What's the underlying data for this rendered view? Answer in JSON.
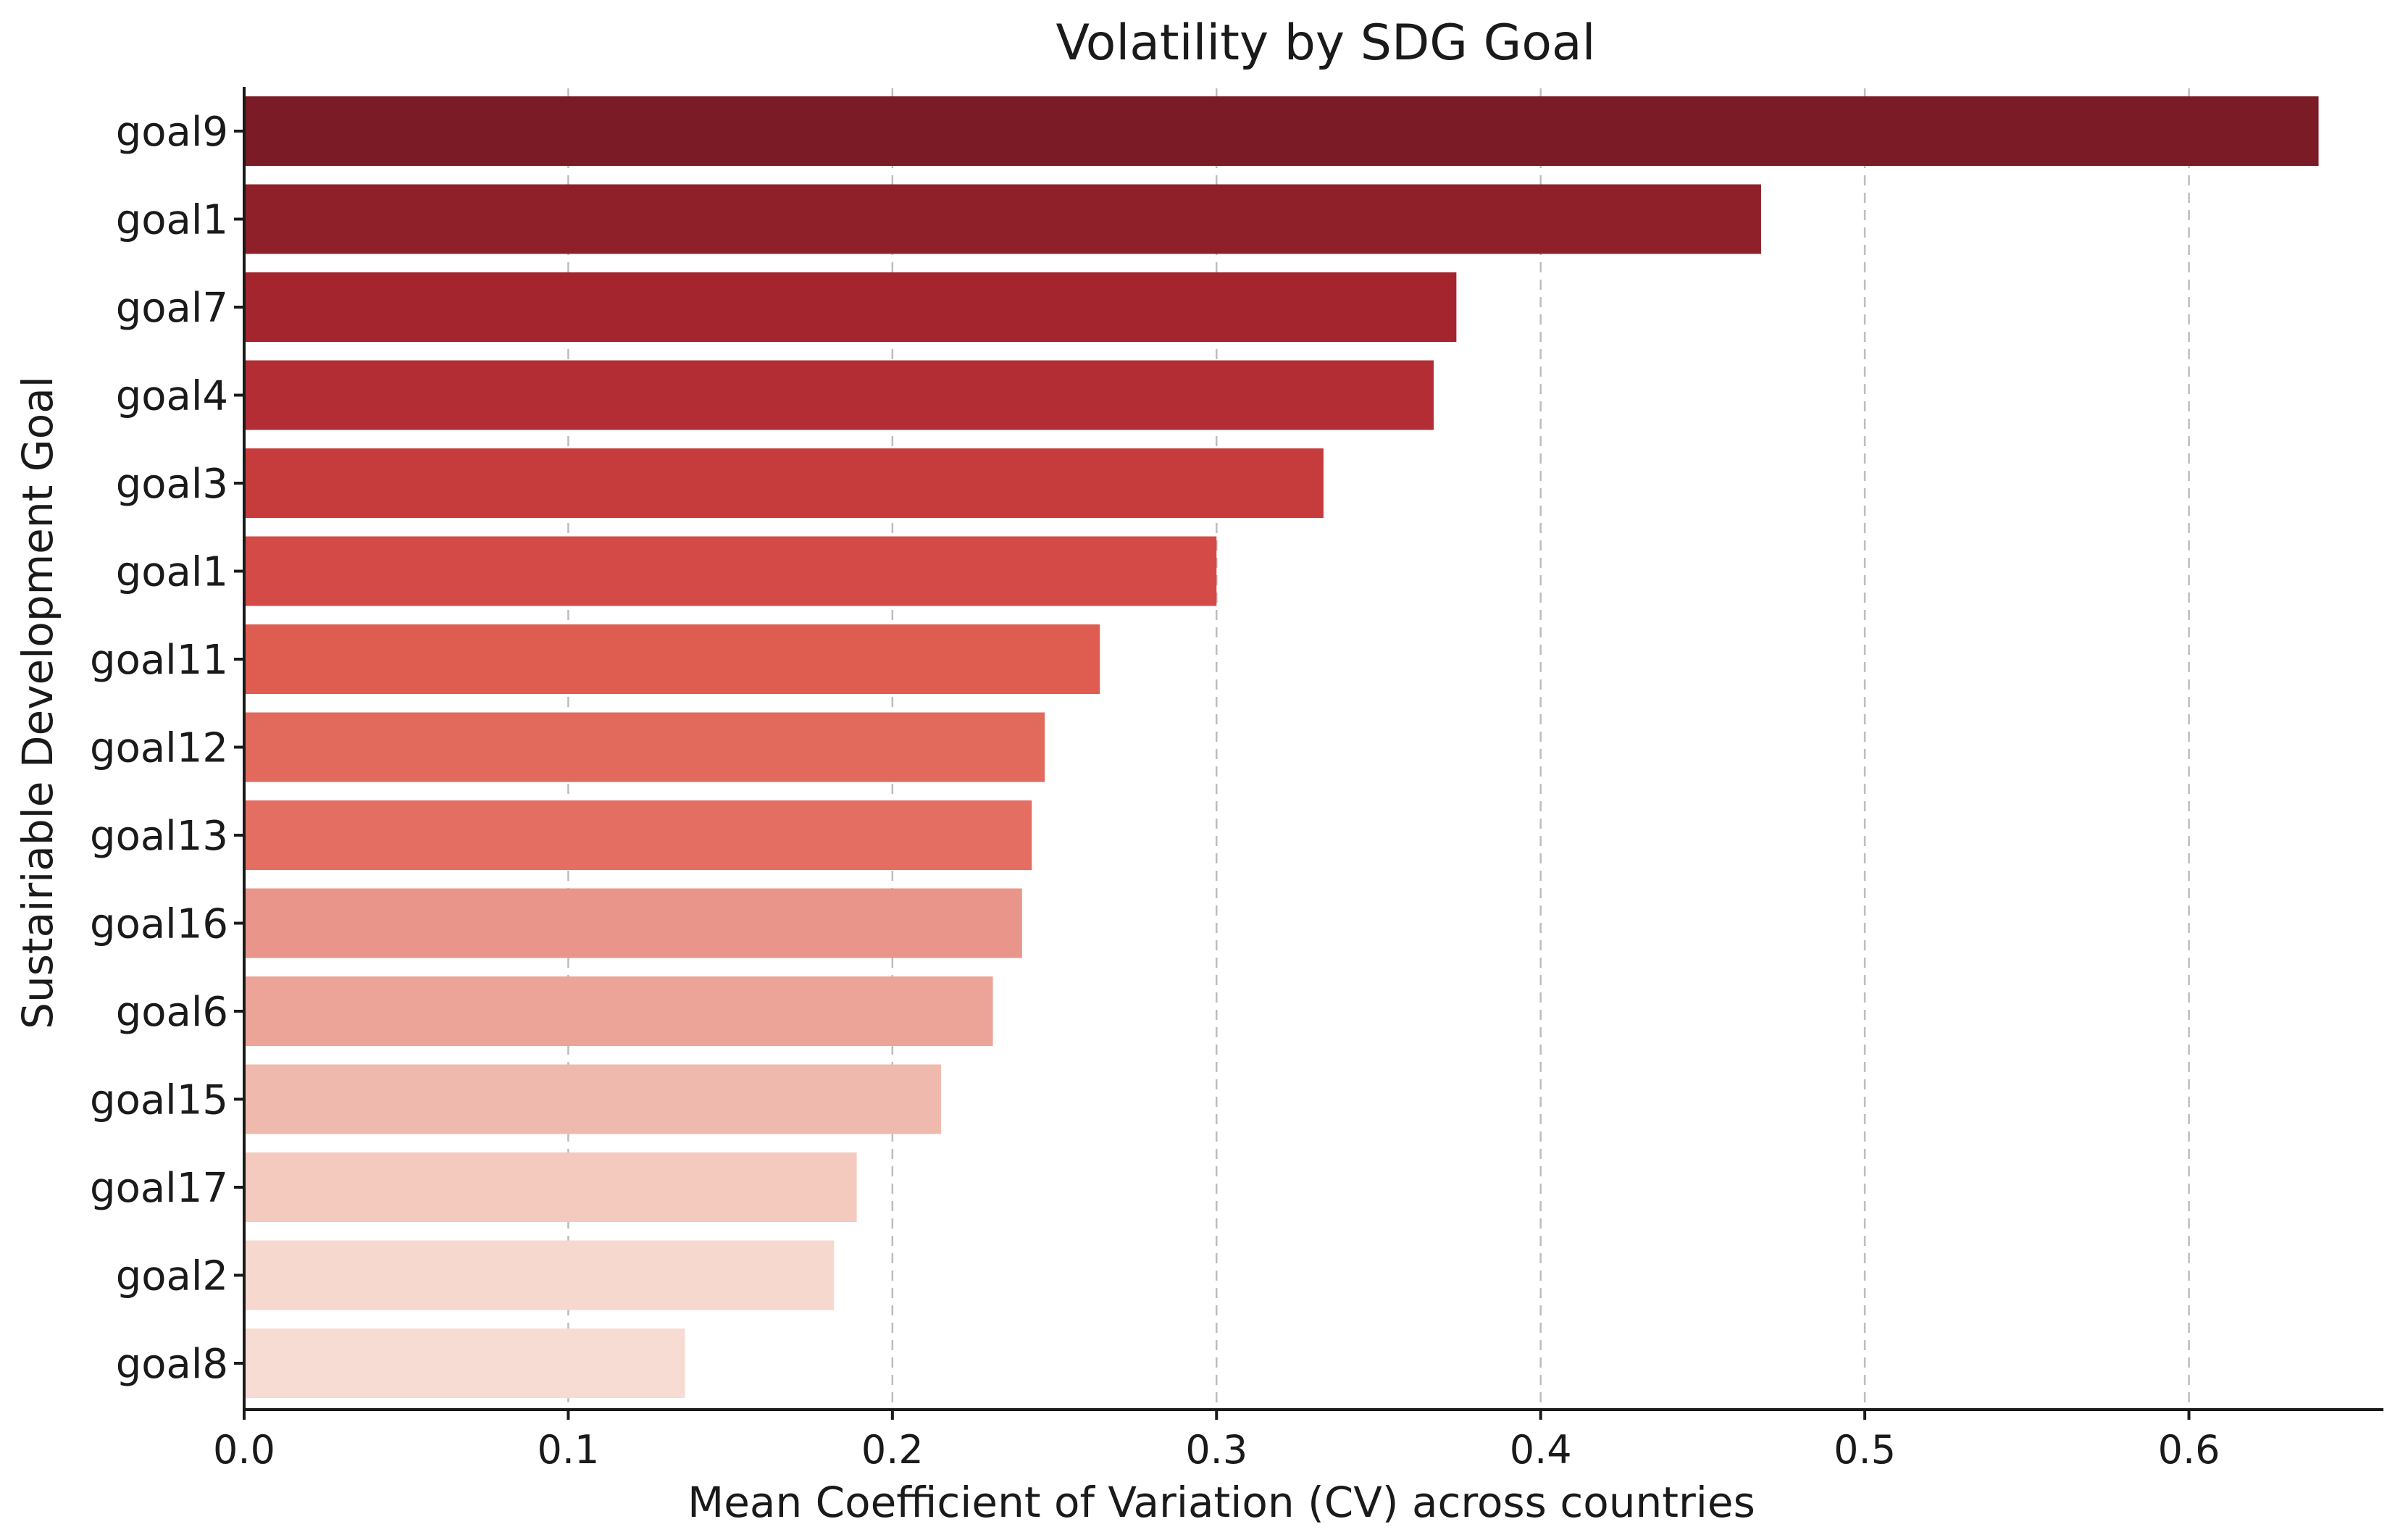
{
  "chart_data": {
    "type": "bar",
    "orientation": "horizontal",
    "title": "Volatility by SDG Goal",
    "xlabel": "Mean Coefficient of Variation (CV) across countries",
    "ylabel": "Sustairiable Development Goal",
    "categories": [
      "goal9",
      "goal1",
      "goal7",
      "goal4",
      "goal3",
      "goal1",
      "goal11",
      "goal12",
      "goal13",
      "goal16",
      "goal6",
      "goal15",
      "goal17",
      "goal2",
      "goal8"
    ],
    "values": [
      0.64,
      0.468,
      0.374,
      0.367,
      0.333,
      0.3,
      0.264,
      0.247,
      0.243,
      0.24,
      0.231,
      0.215,
      0.189,
      0.182,
      0.136
    ],
    "colors": [
      "#7b1b25",
      "#8f1f29",
      "#a4252e",
      "#b22e34",
      "#c63c3c",
      "#d34a47",
      "#df5d50",
      "#e26a5c",
      "#e36e61",
      "#e9958a",
      "#eca498",
      "#f0b9ae",
      "#f4cabf",
      "#f6d8cf",
      "#f7dcd3"
    ],
    "xlim": [
      0,
      0.66
    ],
    "xticks": [
      "0.0",
      "0.1",
      "0.2",
      "0.3",
      "0.4",
      "0.5",
      "0.6"
    ],
    "grid": "vertical dashed",
    "legend": "none"
  }
}
